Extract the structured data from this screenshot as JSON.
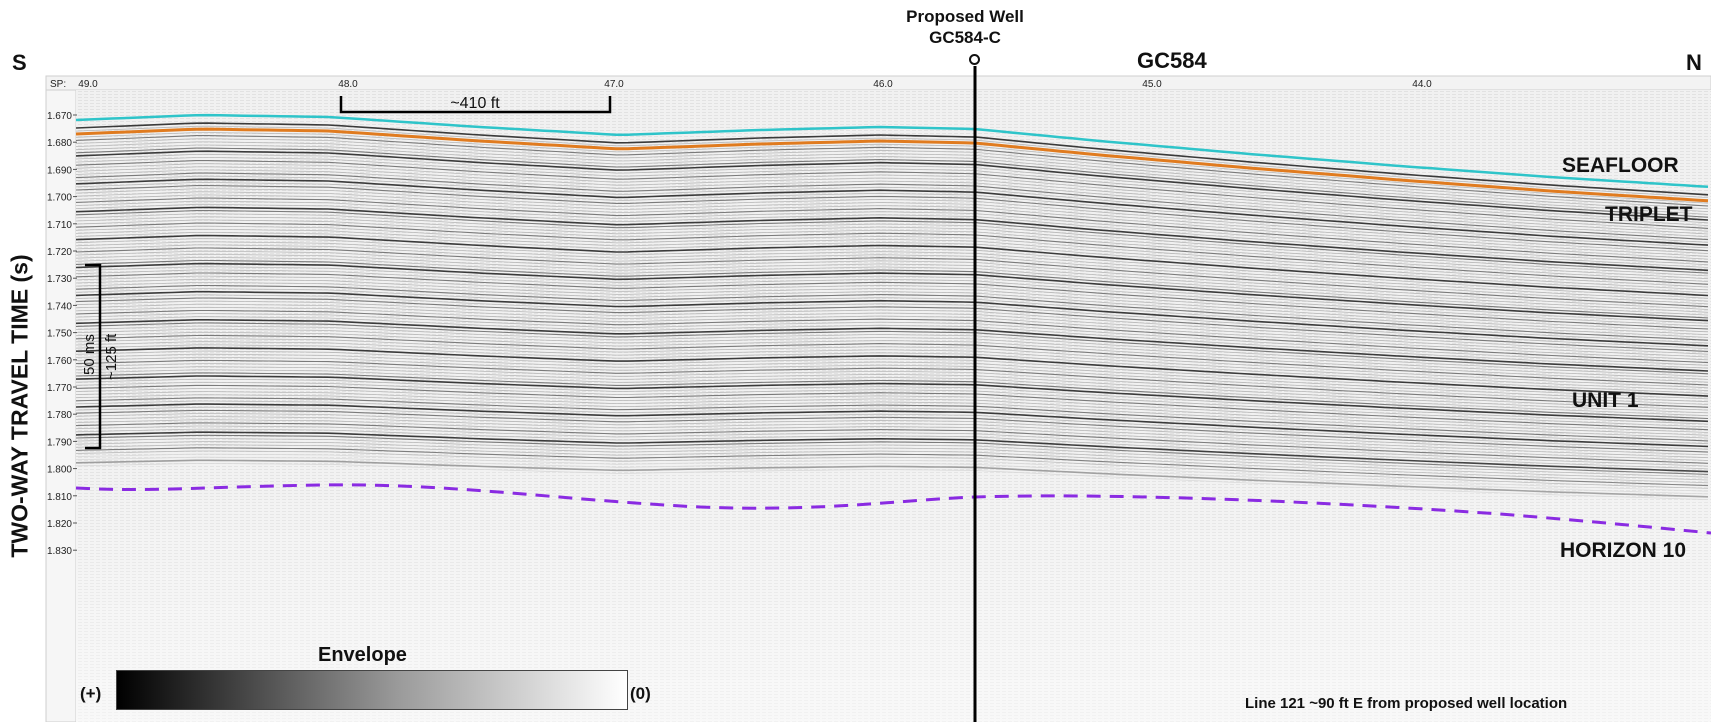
{
  "header": {
    "well_label_line1": "Proposed Well",
    "well_label_line2": "GC584-C",
    "dir_left": "S",
    "dir_right": "N",
    "block_label": "GC584"
  },
  "y_axis": {
    "label": "TWO-WAY TRAVEL TIME (s)",
    "ticks": [
      "1.670",
      "1.680",
      "1.690",
      "1.700",
      "1.710",
      "1.720",
      "1.730",
      "1.740",
      "1.750",
      "1.760",
      "1.770",
      "1.780",
      "1.790",
      "1.800",
      "1.810",
      "1.820",
      "1.830"
    ]
  },
  "shotpoint_axis": {
    "prefix": "SP:",
    "ticks": [
      "49.0",
      "48.0",
      "47.0",
      "46.0",
      "45.0",
      "44.0"
    ]
  },
  "scale_bars": {
    "horizontal": "~410 ft",
    "vertical_time": "50 ms",
    "vertical_depth": "~125 ft"
  },
  "horizons": {
    "seafloor": {
      "label": "SEAFLOOR",
      "color": "#2ec4c9"
    },
    "triplet": {
      "label": "TRIPLET",
      "color": "#e07b1f"
    },
    "unit1": {
      "label": "UNIT 1"
    },
    "horizon10": {
      "label": "HORIZON 10",
      "color": "#8a2be2"
    }
  },
  "legend": {
    "title": "Envelope",
    "left_label": "(+)",
    "right_label": "(0)"
  },
  "footnote": "Line 121 ~90 ft E from proposed well location"
}
